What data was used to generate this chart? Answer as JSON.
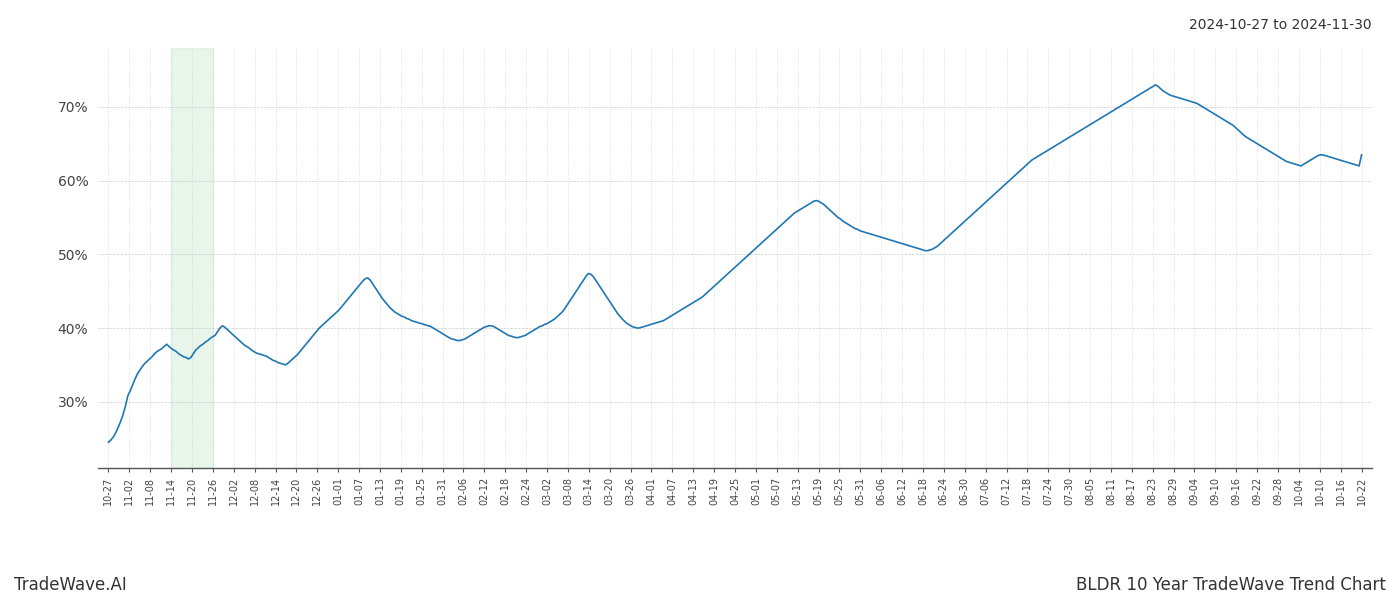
{
  "title_right": "2024-10-27 to 2024-11-30",
  "footer_left": "TradeWave.AI",
  "footer_right": "BLDR 10 Year TradeWave Trend Chart",
  "line_color": "#1f77b4",
  "line_width": 1.2,
  "shade_color": "#d4edda",
  "shade_alpha": 0.55,
  "background_color": "#ffffff",
  "grid_color": "#cccccc",
  "ylim": [
    21,
    78
  ],
  "yticks": [
    30,
    40,
    50,
    60,
    70
  ],
  "x_labels": [
    "10-27",
    "11-02",
    "11-08",
    "11-14",
    "11-20",
    "11-26",
    "12-02",
    "12-08",
    "12-14",
    "12-20",
    "12-26",
    "01-01",
    "01-07",
    "01-13",
    "01-19",
    "01-25",
    "01-31",
    "02-06",
    "02-12",
    "02-18",
    "02-24",
    "03-02",
    "03-08",
    "03-14",
    "03-20",
    "03-26",
    "04-01",
    "04-07",
    "04-13",
    "04-19",
    "04-25",
    "05-01",
    "05-07",
    "05-13",
    "05-19",
    "05-25",
    "05-31",
    "06-06",
    "06-12",
    "06-18",
    "06-24",
    "06-30",
    "07-06",
    "07-12",
    "07-18",
    "07-24",
    "07-30",
    "08-05",
    "08-11",
    "08-17",
    "08-23",
    "08-29",
    "09-04",
    "09-10",
    "09-16",
    "09-22",
    "09-28",
    "10-04",
    "10-10",
    "10-16",
    "10-22"
  ],
  "shade_x_start_label": "11-14",
  "shade_x_end_label": "11-26",
  "y_values": [
    24.5,
    24.8,
    25.2,
    25.8,
    26.5,
    27.3,
    28.2,
    29.4,
    30.8,
    31.5,
    32.3,
    33.1,
    33.8,
    34.3,
    34.8,
    35.2,
    35.5,
    35.8,
    36.1,
    36.5,
    36.8,
    37.0,
    37.2,
    37.5,
    37.8,
    37.5,
    37.2,
    37.0,
    36.8,
    36.5,
    36.3,
    36.1,
    36.0,
    35.8,
    36.0,
    36.5,
    37.0,
    37.3,
    37.6,
    37.8,
    38.1,
    38.3,
    38.6,
    38.8,
    39.0,
    39.5,
    40.0,
    40.3,
    40.1,
    39.8,
    39.5,
    39.2,
    38.9,
    38.6,
    38.3,
    38.0,
    37.7,
    37.5,
    37.3,
    37.0,
    36.8,
    36.6,
    36.5,
    36.4,
    36.3,
    36.2,
    36.0,
    35.8,
    35.6,
    35.5,
    35.3,
    35.2,
    35.1,
    35.0,
    35.2,
    35.5,
    35.8,
    36.1,
    36.4,
    36.8,
    37.2,
    37.6,
    38.0,
    38.4,
    38.8,
    39.2,
    39.6,
    40.0,
    40.3,
    40.6,
    40.9,
    41.2,
    41.5,
    41.8,
    42.1,
    42.4,
    42.8,
    43.2,
    43.6,
    44.0,
    44.4,
    44.8,
    45.2,
    45.6,
    46.0,
    46.4,
    46.7,
    46.8,
    46.5,
    46.0,
    45.5,
    45.0,
    44.5,
    44.0,
    43.6,
    43.2,
    42.8,
    42.5,
    42.2,
    42.0,
    41.8,
    41.6,
    41.5,
    41.3,
    41.2,
    41.0,
    40.9,
    40.8,
    40.7,
    40.6,
    40.5,
    40.4,
    40.3,
    40.2,
    40.0,
    39.8,
    39.6,
    39.4,
    39.2,
    39.0,
    38.8,
    38.6,
    38.5,
    38.4,
    38.3,
    38.3,
    38.4,
    38.5,
    38.7,
    38.9,
    39.1,
    39.3,
    39.5,
    39.7,
    39.9,
    40.1,
    40.2,
    40.3,
    40.3,
    40.2,
    40.0,
    39.8,
    39.6,
    39.4,
    39.2,
    39.0,
    38.9,
    38.8,
    38.7,
    38.7,
    38.8,
    38.9,
    39.0,
    39.2,
    39.4,
    39.6,
    39.8,
    40.0,
    40.2,
    40.3,
    40.5,
    40.6,
    40.8,
    41.0,
    41.2,
    41.5,
    41.8,
    42.1,
    42.5,
    43.0,
    43.5,
    44.0,
    44.5,
    45.0,
    45.5,
    46.0,
    46.5,
    47.0,
    47.4,
    47.3,
    47.0,
    46.5,
    46.0,
    45.5,
    45.0,
    44.5,
    44.0,
    43.5,
    43.0,
    42.5,
    42.0,
    41.6,
    41.2,
    40.9,
    40.6,
    40.4,
    40.2,
    40.1,
    40.0,
    40.0,
    40.1,
    40.2,
    40.3,
    40.4,
    40.5,
    40.6,
    40.7,
    40.8,
    40.9,
    41.0,
    41.2,
    41.4,
    41.6,
    41.8,
    42.0,
    42.2,
    42.4,
    42.6,
    42.8,
    43.0,
    43.2,
    43.4,
    43.6,
    43.8,
    44.0,
    44.2,
    44.5,
    44.8,
    45.1,
    45.4,
    45.7,
    46.0,
    46.3,
    46.6,
    46.9,
    47.2,
    47.5,
    47.8,
    48.1,
    48.4,
    48.7,
    49.0,
    49.3,
    49.6,
    49.9,
    50.2,
    50.5,
    50.8,
    51.1,
    51.4,
    51.7,
    52.0,
    52.3,
    52.6,
    52.9,
    53.2,
    53.5,
    53.8,
    54.1,
    54.4,
    54.7,
    55.0,
    55.3,
    55.6,
    55.8,
    56.0,
    56.2,
    56.4,
    56.6,
    56.8,
    57.0,
    57.2,
    57.3,
    57.2,
    57.0,
    56.8,
    56.5,
    56.2,
    55.9,
    55.6,
    55.3,
    55.0,
    54.8,
    54.5,
    54.3,
    54.1,
    53.9,
    53.7,
    53.5,
    53.4,
    53.2,
    53.1,
    53.0,
    52.9,
    52.8,
    52.7,
    52.6,
    52.5,
    52.4,
    52.3,
    52.2,
    52.1,
    52.0,
    51.9,
    51.8,
    51.7,
    51.6,
    51.5,
    51.4,
    51.3,
    51.2,
    51.1,
    51.0,
    50.9,
    50.8,
    50.7,
    50.6,
    50.5,
    50.5,
    50.6,
    50.7,
    50.9,
    51.1,
    51.4,
    51.7,
    52.0,
    52.3,
    52.6,
    52.9,
    53.2,
    53.5,
    53.8,
    54.1,
    54.4,
    54.7,
    55.0,
    55.3,
    55.6,
    55.9,
    56.2,
    56.5,
    56.8,
    57.1,
    57.4,
    57.7,
    58.0,
    58.3,
    58.6,
    58.9,
    59.2,
    59.5,
    59.8,
    60.1,
    60.4,
    60.7,
    61.0,
    61.3,
    61.6,
    61.9,
    62.2,
    62.5,
    62.8,
    63.0,
    63.2,
    63.4,
    63.6,
    63.8,
    64.0,
    64.2,
    64.4,
    64.6,
    64.8,
    65.0,
    65.2,
    65.4,
    65.6,
    65.8,
    66.0,
    66.2,
    66.4,
    66.6,
    66.8,
    67.0,
    67.2,
    67.4,
    67.6,
    67.8,
    68.0,
    68.2,
    68.4,
    68.6,
    68.8,
    69.0,
    69.2,
    69.4,
    69.6,
    69.8,
    70.0,
    70.2,
    70.4,
    70.6,
    70.8,
    71.0,
    71.2,
    71.4,
    71.6,
    71.8,
    72.0,
    72.2,
    72.4,
    72.6,
    72.8,
    73.0,
    72.8,
    72.5,
    72.2,
    72.0,
    71.8,
    71.6,
    71.5,
    71.4,
    71.3,
    71.2,
    71.1,
    71.0,
    70.9,
    70.8,
    70.7,
    70.6,
    70.5,
    70.3,
    70.1,
    69.9,
    69.7,
    69.5,
    69.3,
    69.1,
    68.9,
    68.7,
    68.5,
    68.3,
    68.1,
    67.9,
    67.7,
    67.5,
    67.2,
    66.9,
    66.6,
    66.3,
    66.0,
    65.8,
    65.6,
    65.4,
    65.2,
    65.0,
    64.8,
    64.6,
    64.4,
    64.2,
    64.0,
    63.8,
    63.6,
    63.4,
    63.2,
    63.0,
    62.8,
    62.6,
    62.5,
    62.4,
    62.3,
    62.2,
    62.1,
    62.0,
    62.2,
    62.4,
    62.6,
    62.8,
    63.0,
    63.2,
    63.4,
    63.5,
    63.5,
    63.4,
    63.3,
    63.2,
    63.1,
    63.0,
    62.9,
    62.8,
    62.7,
    62.6,
    62.5,
    62.4,
    62.3,
    62.2,
    62.1,
    62.0,
    63.5
  ]
}
